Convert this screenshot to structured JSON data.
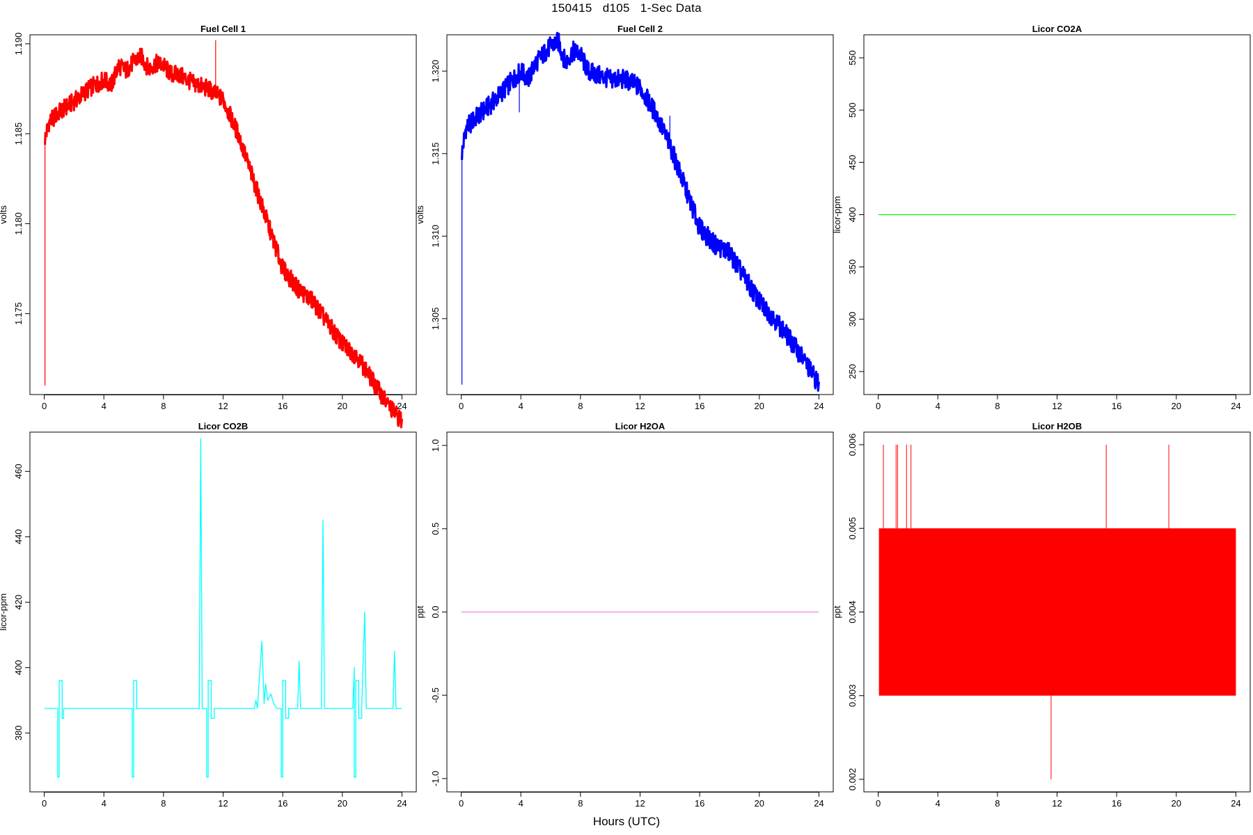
{
  "figure": {
    "title": "150415   d105   1-Sec Data",
    "xlabel": "Hours (UTC)"
  },
  "chart_data": [
    {
      "type": "line",
      "title": "Fuel Cell 1",
      "ylabel": "volts",
      "color": "#ff0000",
      "band": 0.0005,
      "xlim": [
        0,
        24
      ],
      "xticks": [
        0,
        4,
        8,
        12,
        16,
        20,
        24
      ],
      "ylim": [
        1.1705,
        1.1905
      ],
      "yticks": [
        "1.175",
        "1.180",
        "1.185",
        "1.190"
      ],
      "x": [
        0.05,
        0.3,
        1,
        2,
        3,
        4,
        4.5,
        5,
        5.5,
        6,
        6.5,
        7,
        7.5,
        8,
        8.5,
        9,
        10,
        11,
        12,
        13,
        14,
        15,
        16,
        17,
        18,
        19,
        20,
        21,
        22,
        23,
        24
      ],
      "y": [
        1.1847,
        1.1856,
        1.1862,
        1.1868,
        1.1875,
        1.188,
        1.1877,
        1.1888,
        1.1885,
        1.189,
        1.1893,
        1.1886,
        1.1889,
        1.1888,
        1.1883,
        1.1883,
        1.1878,
        1.1875,
        1.1869,
        1.185,
        1.1825,
        1.18,
        1.1775,
        1.1764,
        1.1757,
        1.1745,
        1.1733,
        1.1726,
        1.1713,
        1.17,
        1.169
      ],
      "spikes": [
        {
          "x": 0.05,
          "y": 1.171
        },
        {
          "x": 11.5,
          "y": 1.1902
        }
      ]
    },
    {
      "type": "line",
      "title": "Fuel Cell 2",
      "ylabel": "volts",
      "color": "#0000ff",
      "band": 0.0006,
      "xlim": [
        0,
        24
      ],
      "xticks": [
        0,
        4,
        8,
        12,
        16,
        20,
        24
      ],
      "ylim": [
        1.3004,
        1.3222
      ],
      "yticks": [
        "1.305",
        "1.310",
        "1.315",
        "1.320"
      ],
      "x": [
        0.05,
        0.3,
        1,
        2,
        3,
        4,
        4.5,
        5,
        5.5,
        6,
        6.5,
        7,
        7.5,
        8,
        8.5,
        9,
        10,
        11,
        12,
        13,
        14,
        15,
        16,
        17,
        18,
        19,
        20,
        21,
        22,
        23,
        24
      ],
      "y": [
        1.315,
        1.3165,
        1.3172,
        1.318,
        1.319,
        1.32,
        1.3195,
        1.3205,
        1.321,
        1.3215,
        1.3218,
        1.3205,
        1.3212,
        1.321,
        1.32,
        1.3198,
        1.3195,
        1.3195,
        1.319,
        1.3175,
        1.3155,
        1.313,
        1.3105,
        1.3095,
        1.309,
        1.3075,
        1.306,
        1.305,
        1.3038,
        1.3025,
        1.301
      ],
      "spikes": [
        {
          "x": 0.05,
          "y": 1.301
        },
        {
          "x": 14.0,
          "y": 1.3173
        },
        {
          "x": 3.9,
          "y": 1.3175
        }
      ]
    },
    {
      "type": "line",
      "title": "Licor CO2A",
      "ylabel": "licor-ppm",
      "color": "#00ff00",
      "band": 0,
      "xlim": [
        0,
        24
      ],
      "xticks": [
        0,
        4,
        8,
        12,
        16,
        20,
        24
      ],
      "ylim": [
        228,
        572
      ],
      "yticks": [
        "250",
        "300",
        "350",
        "400",
        "450",
        "500",
        "550"
      ],
      "x": [
        0,
        24
      ],
      "y": [
        400,
        400
      ],
      "spikes": []
    },
    {
      "type": "line",
      "title": "Licor CO2B",
      "ylabel": "licor-ppm",
      "color": "#00ffff",
      "band": 0,
      "xlim": [
        0,
        24
      ],
      "xticks": [
        0,
        4,
        8,
        12,
        16,
        20,
        24
      ],
      "ylim": [
        362,
        472
      ],
      "yticks": [
        "380",
        "400",
        "420",
        "440",
        "460"
      ],
      "x": [
        0,
        0.9,
        0.9,
        1.0,
        1.0,
        1.2,
        1.2,
        1.3,
        1.3,
        1.4,
        1.4,
        5.9,
        5.9,
        6.0,
        6.0,
        6.2,
        6.2,
        6.3,
        6.3,
        10.4,
        10.5,
        10.6,
        10.9,
        10.9,
        11.0,
        11.0,
        11.2,
        11.2,
        11.4,
        11.4,
        11.7,
        11.7,
        14.1,
        14.2,
        14.3,
        14.6,
        14.75,
        14.85,
        15.0,
        15.2,
        15.4,
        15.6,
        15.9,
        15.9,
        16.0,
        16.0,
        16.2,
        16.2,
        16.4,
        16.4,
        17.0,
        17.1,
        17.2,
        18.6,
        18.7,
        18.8,
        20.7,
        20.8,
        20.8,
        20.9,
        20.9,
        21.1,
        21.1,
        21.3,
        21.3,
        21.5,
        21.6,
        21.7,
        23.4,
        23.5,
        23.6,
        24
      ],
      "y": [
        387.5,
        387.5,
        366.5,
        366.5,
        396,
        396,
        384.5,
        384.5,
        387.5,
        387.5,
        387.5,
        387.5,
        366.5,
        366.5,
        396,
        396,
        387.5,
        387.5,
        387.5,
        387.5,
        470,
        387.5,
        387.5,
        366.5,
        366.5,
        396,
        396,
        384.5,
        384.5,
        387.5,
        387.5,
        387.5,
        387.5,
        390,
        387.5,
        408,
        389,
        395,
        390,
        392,
        389,
        387.5,
        387.5,
        366.5,
        366.5,
        396,
        396,
        384.5,
        384.5,
        387.5,
        387.5,
        402,
        387.5,
        387.5,
        445,
        387.5,
        387.5,
        400,
        366.5,
        366.5,
        396,
        396,
        384.5,
        384.5,
        387.5,
        417,
        387.5,
        387.5,
        387.5,
        405,
        387.5,
        387.5
      ],
      "spikes": []
    },
    {
      "type": "line",
      "title": "Licor H2OA",
      "ylabel": "ppt",
      "color": "#ee82ee",
      "band": 0,
      "xlim": [
        0,
        24
      ],
      "xticks": [
        0,
        4,
        8,
        12,
        16,
        20,
        24
      ],
      "ylim": [
        -1.08,
        1.08
      ],
      "yticks": [
        "-1.0",
        "-0.5",
        "0.0",
        "0.5",
        "1.0"
      ],
      "x": [
        0,
        24
      ],
      "y": [
        0,
        0
      ],
      "spikes": []
    },
    {
      "type": "area",
      "title": "Licor H2OB",
      "ylabel": "ppt",
      "color": "#ff0000",
      "xlim": [
        0,
        24
      ],
      "xticks": [
        0,
        4,
        8,
        12,
        16,
        20,
        24
      ],
      "ylim": [
        0.00185,
        0.00615
      ],
      "yticks": [
        "0.002",
        "0.003",
        "0.004",
        "0.005",
        "0.006"
      ],
      "range_low": 0.003,
      "range_high": 0.005,
      "x_start": 0.05,
      "x_end": 24,
      "spikes": [
        {
          "x": 0.35,
          "y": 0.006
        },
        {
          "x": 1.2,
          "y": 0.006
        },
        {
          "x": 1.3,
          "y": 0.006
        },
        {
          "x": 1.9,
          "y": 0.006
        },
        {
          "x": 2.2,
          "y": 0.006
        },
        {
          "x": 15.3,
          "y": 0.006
        },
        {
          "x": 19.5,
          "y": 0.006
        },
        {
          "x": 11.6,
          "y": 0.002
        }
      ]
    }
  ]
}
